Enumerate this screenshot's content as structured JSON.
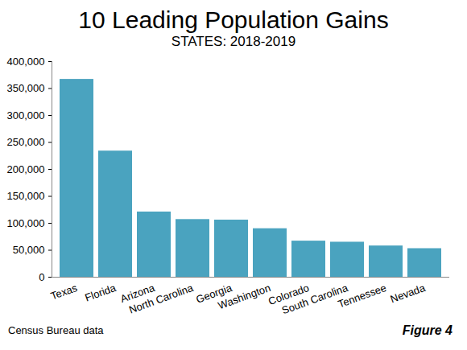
{
  "chart_data": {
    "type": "bar",
    "title": "10 Leading Population Gains",
    "subtitle": "STATES: 2018-2019",
    "categories": [
      "Texas",
      "Florida",
      "Arizona",
      "North Carolina",
      "Georgia",
      "Washington",
      "Colorado",
      "South Carolina",
      "Tennessee",
      "Nevada"
    ],
    "values": [
      367000,
      234000,
      121000,
      107000,
      106000,
      90000,
      67000,
      65000,
      58000,
      53000
    ],
    "color": "#4aa3bf",
    "ylim": [
      0,
      400000
    ],
    "yticks": [
      0,
      {
        "value": 50000,
        "label": "50,000"
      },
      {
        "value": 100000,
        "label": "100,000"
      },
      {
        "value": 150000,
        "label": "150,000"
      },
      {
        "value": 200000,
        "label": "200,000"
      },
      {
        "value": 250000,
        "label": "250,000"
      },
      {
        "value": 300000,
        "label": "300,000"
      },
      {
        "value": 350000,
        "label": "350,000"
      },
      {
        "value": 400000,
        "label": "400,000"
      }
    ],
    "grid": false,
    "caption": "Census Bureau data",
    "figure_label": "Figure 4"
  }
}
